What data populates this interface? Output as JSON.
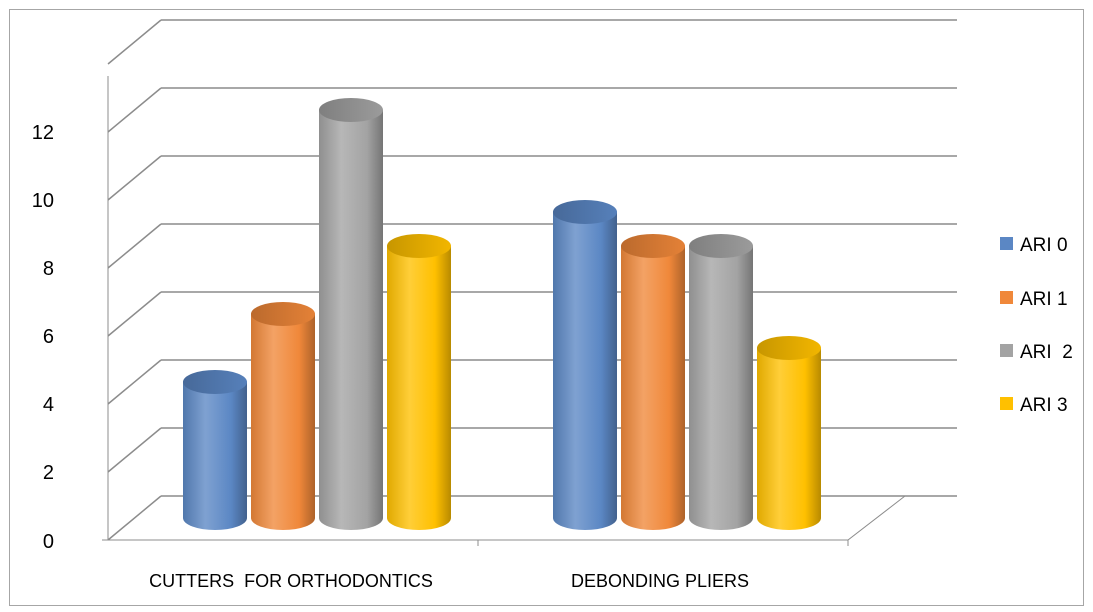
{
  "chart_data": {
    "type": "bar",
    "categories": [
      "CUTTERS  FOR ORTHODONTICS",
      "DEBONDING PLIERS"
    ],
    "series": [
      {
        "name": "ARI 0",
        "values": [
          4,
          9
        ],
        "color": "#5b87c4"
      },
      {
        "name": "ARI 1",
        "values": [
          6,
          8
        ],
        "color": "#f0883a"
      },
      {
        "name": "ARI  2",
        "values": [
          12,
          8
        ],
        "color": "#a3a3a3"
      },
      {
        "name": "ARI 3",
        "values": [
          8,
          5
        ],
        "color": "#ffc000"
      }
    ],
    "y_ticks": [
      "0",
      "2",
      "4",
      "6",
      "8",
      "10",
      "12"
    ],
    "ylim": [
      0,
      14
    ],
    "legend_position": "right",
    "grid": true,
    "style": "3d-cylinder"
  }
}
